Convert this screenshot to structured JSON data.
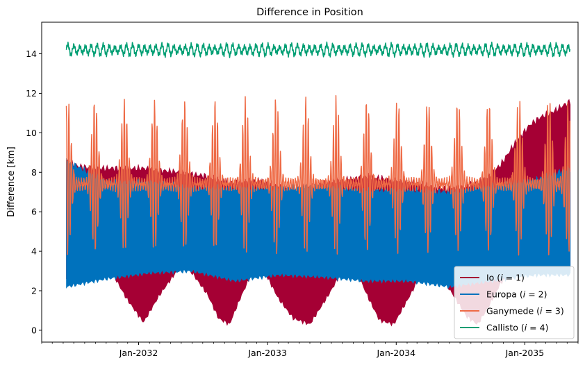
{
  "chart_data": {
    "type": "line",
    "title": "Difference in Position",
    "xlabel": "",
    "ylabel": "Difference [km]",
    "x_range": [
      "2031-04-01",
      "2035-06-01"
    ],
    "ylim": [
      -0.6,
      15.6
    ],
    "x_ticks": [
      {
        "date": "2032-01-01",
        "label": "Jan-2032"
      },
      {
        "date": "2033-01-01",
        "label": "Jan-2033"
      },
      {
        "date": "2034-01-01",
        "label": "Jan-2034"
      },
      {
        "date": "2035-01-01",
        "label": "Jan-2035"
      }
    ],
    "y_ticks": [
      0,
      2,
      4,
      6,
      8,
      10,
      12,
      14
    ],
    "grid": false,
    "legend": "lower-right",
    "series": [
      {
        "name": "Io (i = 1)",
        "name_main": "Io",
        "name_idx": "1",
        "color": "#a50034",
        "kind": "band",
        "dates": [
          "2031-06-10",
          "2031-07-15",
          "2031-09-01",
          "2031-10-15",
          "2031-11-28",
          "2032-01-15",
          "2032-03-01",
          "2032-05-01",
          "2032-06-01",
          "2032-07-15",
          "2032-08-15",
          "2032-09-15",
          "2032-10-15",
          "2032-11-20",
          "2032-12-25",
          "2033-02-01",
          "2033-03-15",
          "2033-05-01",
          "2033-06-20",
          "2033-08-01",
          "2033-09-15",
          "2033-10-15",
          "2033-11-15",
          "2033-12-25",
          "2034-02-01",
          "2034-03-15",
          "2034-05-01",
          "2034-06-15",
          "2034-07-20",
          "2034-08-20",
          "2034-09-20",
          "2034-10-25",
          "2034-12-01",
          "2035-01-15",
          "2035-02-15",
          "2035-03-25",
          "2035-05-10"
        ],
        "lower": [
          2.6,
          2.9,
          3.4,
          3.0,
          1.6,
          0.4,
          1.8,
          3.3,
          2.9,
          1.8,
          0.6,
          0.3,
          1.6,
          3.0,
          2.9,
          1.6,
          0.6,
          0.3,
          1.7,
          3.0,
          2.8,
          1.6,
          0.5,
          0.3,
          1.5,
          2.9,
          2.9,
          1.7,
          0.7,
          0.3,
          1.2,
          2.4,
          3.2,
          3.7,
          4.1,
          3.8,
          2.9
        ],
        "upper": [
          8.6,
          8.3,
          8.2,
          8.2,
          8.2,
          8.2,
          8.1,
          8.0,
          7.9,
          7.8,
          7.6,
          7.5,
          7.5,
          7.6,
          7.5,
          7.3,
          7.2,
          7.3,
          7.5,
          7.6,
          7.7,
          7.8,
          7.7,
          7.6,
          7.5,
          7.4,
          7.2,
          7.2,
          7.3,
          7.5,
          7.8,
          8.4,
          9.4,
          10.4,
          10.8,
          11.1,
          11.6
        ]
      },
      {
        "name": "Europa (i = 2)",
        "name_main": "Europa",
        "name_idx": "2",
        "color": "#0072bd",
        "kind": "band",
        "dates": [
          "2031-06-10",
          "2031-10-01",
          "2032-02-01",
          "2032-06-01",
          "2032-10-01",
          "2033-02-01",
          "2033-06-01",
          "2033-10-01",
          "2034-02-01",
          "2034-06-01",
          "2034-10-01",
          "2035-02-01",
          "2035-05-10"
        ],
        "lower": [
          2.2,
          2.6,
          2.9,
          3.0,
          2.5,
          2.8,
          2.7,
          2.5,
          2.5,
          2.2,
          2.5,
          2.8,
          2.8
        ],
        "upper": [
          8.6,
          7.5,
          7.5,
          7.2,
          7.2,
          7.2,
          7.3,
          7.1,
          7.1,
          7.0,
          7.3,
          7.6,
          8.2
        ]
      },
      {
        "name": "Ganymede (i = 3)",
        "name_main": "Ganymede",
        "name_idx": "3",
        "color": "#ee6a45",
        "kind": "oscillation",
        "start": "2031-06-10",
        "end": "2035-05-10",
        "beat_peaks": [
          "2031-06-14",
          "2031-08-30",
          "2031-11-22",
          "2032-02-15",
          "2032-05-10",
          "2032-08-05",
          "2032-10-30",
          "2033-01-25",
          "2033-04-20",
          "2033-07-15",
          "2033-10-10",
          "2034-01-05",
          "2034-04-01",
          "2034-06-25",
          "2034-09-20",
          "2034-12-15",
          "2035-03-10",
          "2035-05-05"
        ],
        "sub_period_days": 7.15,
        "base_upper": 7.6,
        "peak_upper": 11.8,
        "base_lower": 7.2,
        "dip_lower": 3.8
      },
      {
        "name": "Callisto (i = 4)",
        "name_main": "Callisto",
        "name_idx": "4",
        "color": "#009e73",
        "kind": "oscillation",
        "start": "2031-06-10",
        "end": "2035-05-10",
        "mean": 14.2,
        "amplitude": 0.22,
        "period_days": 16.7
      }
    ]
  }
}
